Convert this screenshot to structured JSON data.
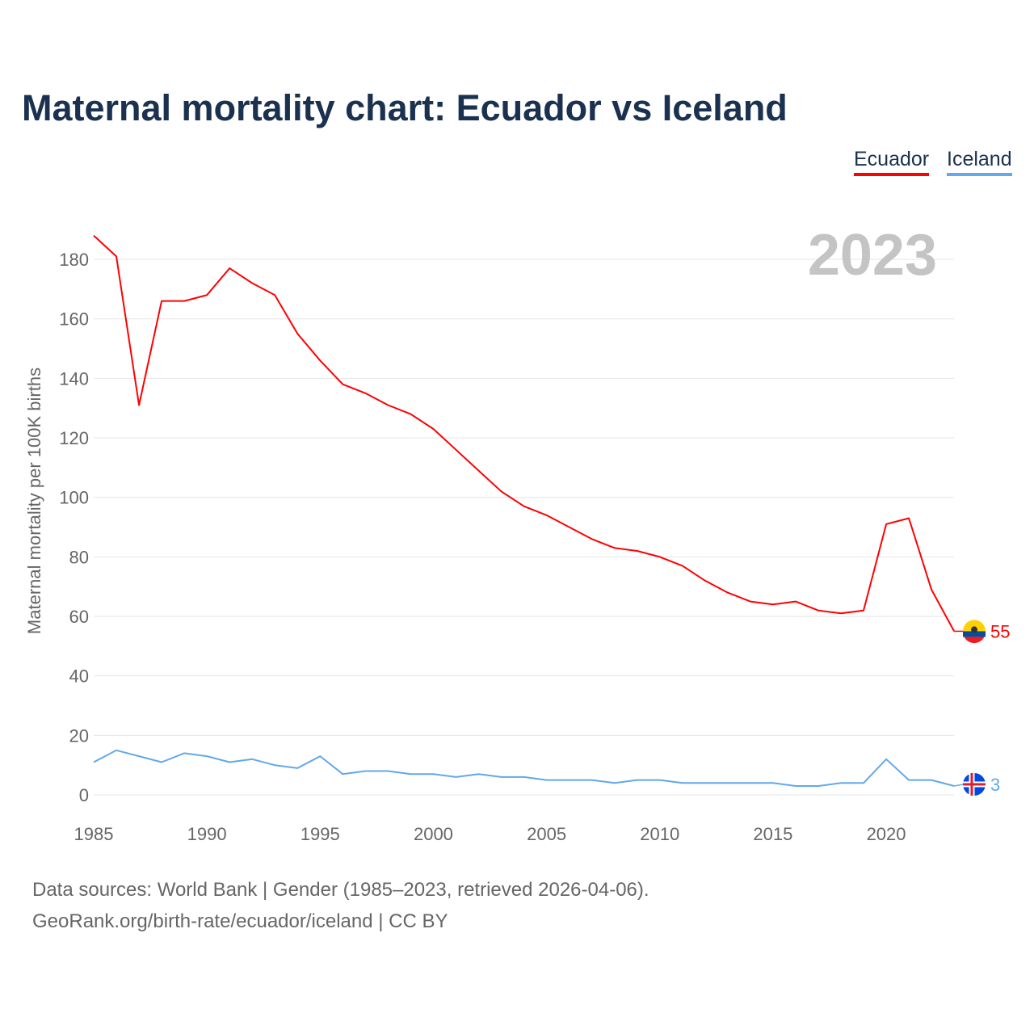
{
  "title": "Maternal mortality chart: Ecuador vs Iceland",
  "footer": {
    "line1": "Data sources: World Bank | Gender (1985–2023, retrieved 2026-04-06).",
    "line2": "GeoRank.org/birth-rate/ecuador/iceland | CC BY"
  },
  "chart_data": {
    "type": "line",
    "title": "Maternal mortality chart: Ecuador vs Iceland",
    "ylabel": "Maternal mortality per 100K births",
    "xlabel": "",
    "year_label": "2023",
    "xlim": [
      1985,
      2023
    ],
    "ylim": [
      0,
      190
    ],
    "xticks": [
      1985,
      1990,
      1995,
      2000,
      2005,
      2010,
      2015,
      2020
    ],
    "yticks": [
      0,
      20,
      40,
      60,
      80,
      100,
      120,
      140,
      160,
      180
    ],
    "grid": true,
    "legend_position": "top-right",
    "x": [
      1985,
      1986,
      1987,
      1988,
      1989,
      1990,
      1991,
      1992,
      1993,
      1994,
      1995,
      1996,
      1997,
      1998,
      1999,
      2000,
      2001,
      2002,
      2003,
      2004,
      2005,
      2006,
      2007,
      2008,
      2009,
      2010,
      2011,
      2012,
      2013,
      2014,
      2015,
      2016,
      2017,
      2018,
      2019,
      2020,
      2021,
      2022,
      2023
    ],
    "series": [
      {
        "name": "Ecuador",
        "color": "#ff0000",
        "end_label": "55",
        "values": [
          188,
          181,
          131,
          166,
          166,
          168,
          177,
          172,
          168,
          155,
          146,
          138,
          135,
          131,
          128,
          123,
          116,
          109,
          102,
          97,
          94,
          90,
          86,
          83,
          82,
          80,
          77,
          72,
          68,
          65,
          64,
          65,
          62,
          61,
          62,
          91,
          93,
          69,
          55
        ]
      },
      {
        "name": "Iceland",
        "color": "#62a8ea",
        "end_label": "3",
        "values": [
          11,
          15,
          13,
          11,
          14,
          13,
          11,
          12,
          10,
          9,
          13,
          7,
          8,
          8,
          7,
          7,
          6,
          7,
          6,
          6,
          5,
          5,
          5,
          4,
          5,
          5,
          4,
          4,
          4,
          4,
          4,
          3,
          3,
          4,
          4,
          12,
          5,
          5,
          3
        ]
      }
    ]
  }
}
